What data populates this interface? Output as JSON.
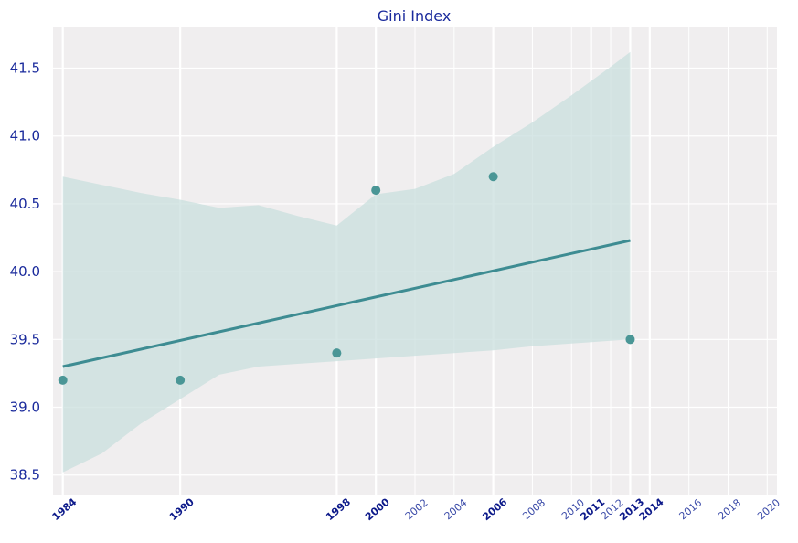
{
  "chart_data": {
    "type": "scatter",
    "title": "Gini Index",
    "xlabel": "",
    "ylabel": "",
    "xlim": [
      1983.5,
      2020.5
    ],
    "ylim": [
      38.35,
      41.8
    ],
    "grid": true,
    "points": [
      {
        "x": 1984,
        "y": 39.2
      },
      {
        "x": 1990,
        "y": 39.2
      },
      {
        "x": 1998,
        "y": 39.4
      },
      {
        "x": 2000,
        "y": 40.6
      },
      {
        "x": 2006,
        "y": 40.7
      },
      {
        "x": 2013,
        "y": 39.5
      }
    ],
    "regression": {
      "x": [
        1984,
        2013
      ],
      "y": [
        39.3,
        40.23
      ]
    },
    "confidence_band": {
      "x": [
        1984,
        1986,
        1988,
        1990,
        1992,
        1994,
        1996,
        1998,
        2000,
        2002,
        2004,
        2006,
        2008,
        2010,
        2012,
        2013
      ],
      "upper": [
        40.7,
        40.64,
        40.58,
        40.53,
        40.47,
        40.49,
        40.41,
        40.34,
        40.57,
        40.61,
        40.72,
        40.92,
        41.1,
        41.3,
        41.51,
        41.62
      ],
      "lower": [
        38.52,
        38.66,
        38.88,
        39.06,
        39.24,
        39.3,
        39.32,
        39.34,
        39.36,
        39.38,
        39.4,
        39.42,
        39.45,
        39.47,
        39.49,
        39.5
      ]
    },
    "y_ticks": [
      38.5,
      39.0,
      39.5,
      40.0,
      40.5,
      41.0,
      41.5
    ],
    "y_tick_labels": [
      "38.5",
      "39.0",
      "39.5",
      "40.0",
      "40.5",
      "41.0",
      "41.5"
    ],
    "x_ticks_major": [
      1984,
      1990,
      1998,
      2000,
      2006,
      2011,
      2013,
      2014
    ],
    "x_ticks_major_labels": [
      "1984",
      "1990",
      "1998",
      "2000",
      "2006",
      "2011",
      "2013",
      "2014"
    ],
    "x_ticks_minor": [
      2002,
      2004,
      2008,
      2010,
      2012,
      2016,
      2018,
      2020
    ],
    "x_ticks_minor_labels": [
      "2002",
      "2004",
      "2008",
      "2010",
      "2012",
      "2016",
      "2018",
      "2020"
    ],
    "colors": {
      "points": "#4a9696",
      "line": "#3d8c92",
      "band": "#c9dfdd",
      "plot_bg": "#f0eeef",
      "grid": "#ffffff",
      "text": "#1a2a9c"
    }
  }
}
